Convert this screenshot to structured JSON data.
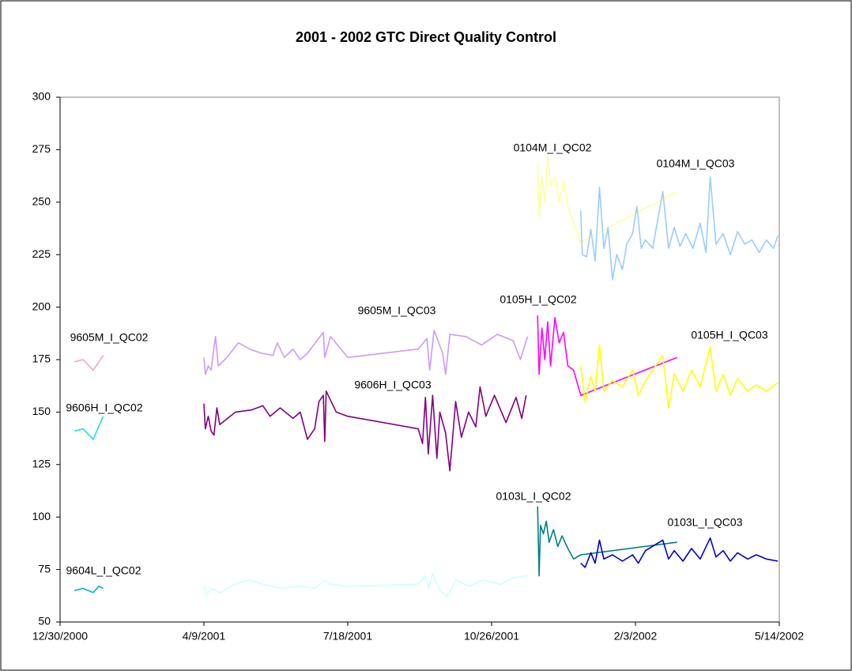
{
  "chart_data": {
    "type": "line",
    "title": "2001 - 2002 GTC Direct Quality Control",
    "xlim": [
      "12/30/2000",
      "5/14/2002"
    ],
    "xticks": [
      "12/30/2000",
      "4/9/2001",
      "7/18/2001",
      "10/26/2001",
      "2/3/2002",
      "5/14/2002"
    ],
    "ylim": [
      50,
      300
    ],
    "yticks": [
      50,
      75,
      100,
      125,
      150,
      175,
      200,
      225,
      250,
      275,
      300
    ],
    "grid": false,
    "series": [
      {
        "name": "9605M_I_QC02",
        "color": "#ff99cc",
        "x": [
          "1/9/2001",
          "1/15/2001",
          "1/22/2001",
          "1/29/2001"
        ],
        "values": [
          174,
          175,
          170,
          177
        ]
      },
      {
        "name": "9606H_I_QC02",
        "color": "#22dddd",
        "x": [
          "1/9/2001",
          "1/15/2001",
          "1/22/2001",
          "1/29/2001"
        ],
        "values": [
          141,
          142,
          137,
          148
        ]
      },
      {
        "name": "9604L_I_QC02",
        "color": "#00b0d8",
        "x": [
          "1/9/2001",
          "1/15/2001",
          "1/22/2001",
          "1/26/2001",
          "1/29/2001"
        ],
        "values": [
          65,
          66,
          64,
          67,
          66
        ]
      },
      {
        "name": "9605M_I_QC03",
        "color": "#cc99ff",
        "x": [
          "4/9/2001",
          "4/10/2001",
          "4/12/2001",
          "4/14/2001",
          "4/17/2001",
          "4/19/2001",
          "4/25/2001",
          "5/3/2001",
          "5/11/2001",
          "5/19/2001",
          "5/27/2001",
          "5/30/2001",
          "6/4/2001",
          "6/10/2001",
          "6/15/2001",
          "6/20/2001",
          "7/1/2001",
          "7/2/2001",
          "7/6/2001",
          "7/18/2001",
          "9/5/2001",
          "9/11/2001",
          "9/13/2001",
          "9/16/2001",
          "9/22/2001",
          "9/24/2001",
          "9/27/2001",
          "10/8/2001",
          "10/19/2001",
          "10/30/2001",
          "11/10/2001",
          "11/15/2001",
          "11/20/2001"
        ],
        "values": [
          176,
          168,
          172,
          170,
          186,
          172,
          176,
          183,
          180,
          178,
          177,
          183,
          176,
          180,
          175,
          178,
          188,
          176,
          186,
          176,
          180,
          185,
          170,
          189,
          178,
          168,
          187,
          186,
          182,
          187,
          184,
          175,
          186
        ]
      },
      {
        "name": "9606H_I_QC03",
        "color": "#800080",
        "x": [
          "4/9/2001",
          "4/10/2001",
          "4/12/2001",
          "4/14/2001",
          "4/16/2001",
          "4/18/2001",
          "4/20/2001",
          "5/1/2001",
          "5/12/2001",
          "5/20/2001",
          "5/25/2001",
          "6/1/2001",
          "6/10/2001",
          "6/15/2001",
          "6/20/2001",
          "6/25/2001",
          "6/28/2001",
          "7/1/2001",
          "7/2/2001",
          "7/3/2001",
          "7/10/2001",
          "7/18/2001",
          "9/5/2001",
          "9/8/2001",
          "9/10/2001",
          "9/12/2001",
          "9/15/2001",
          "9/18/2001",
          "9/20/2001",
          "9/24/2001",
          "9/27/2001",
          "10/1/2001",
          "10/5/2001",
          "10/10/2001",
          "10/15/2001",
          "10/18/2001",
          "10/22/2001",
          "10/28/2001",
          "11/5/2001",
          "11/12/2001",
          "11/16/2001",
          "11/19/2001"
        ],
        "values": [
          154,
          142,
          148,
          141,
          139,
          152,
          144,
          150,
          151,
          153,
          148,
          152,
          147,
          150,
          137,
          142,
          155,
          158,
          136,
          160,
          150,
          148,
          142,
          135,
          157,
          130,
          158,
          128,
          150,
          140,
          122,
          155,
          138,
          150,
          143,
          162,
          148,
          158,
          145,
          157,
          147,
          158
        ]
      },
      {
        "color": "#ccffff",
        "x": [
          "4/9/2001",
          "4/11/2001",
          "4/14/2001",
          "4/20/2001",
          "5/1/2001",
          "5/10/2001",
          "5/20/2001",
          "6/1/2001",
          "6/15/2001",
          "6/25/2001",
          "7/2/2001",
          "7/5/2001",
          "7/18/2001",
          "9/5/2001",
          "9/10/2001",
          "9/12/2001",
          "9/15/2001",
          "9/20/2001",
          "9/25/2001",
          "10/1/2001",
          "10/10/2001",
          "10/20/2001",
          "11/1/2001",
          "11/10/2001",
          "11/20/2001"
        ],
        "values": [
          67,
          63,
          66,
          64,
          68,
          70,
          68,
          66,
          67,
          66,
          70,
          68,
          67,
          68,
          72,
          66,
          73,
          65,
          62,
          70,
          67,
          70,
          68,
          71,
          72
        ]
      },
      {
        "name": "0104M_I_QC02",
        "color": "#ffff99",
        "x": [
          "11/27/2001",
          "11/28/2001",
          "11/30/2001",
          "12/2/2001",
          "12/4/2001",
          "12/6/2001",
          "12/9/2001",
          "12/12/2001",
          "12/15/2001",
          "12/18/2001",
          "12/22/2001",
          "12/27/2001",
          "3/4/2002"
        ],
        "values": [
          269,
          243,
          262,
          250,
          272,
          258,
          262,
          250,
          260,
          248,
          240,
          231,
          255
        ]
      },
      {
        "name": "0104M_I_QC03",
        "color": "#99ccff",
        "x": [
          "12/27/2001",
          "12/28/2001",
          "12/31/2001",
          "1/3/2002",
          "1/6/2002",
          "1/9/2002",
          "1/12/2002",
          "1/15/2002",
          "1/18/2002",
          "1/21/2002",
          "1/25/2002",
          "1/28/2002",
          "2/1/2002",
          "2/4/2002",
          "2/7/2002",
          "2/10/2002",
          "2/15/2002",
          "2/22/2002",
          "2/26/2002",
          "3/2/2002",
          "3/6/2002",
          "3/10/2002",
          "3/15/2002",
          "3/20/2002",
          "3/24/2002",
          "3/27/2002",
          "3/31/2002",
          "4/5/2002",
          "4/10/2002",
          "4/15/2002",
          "4/20/2002",
          "4/25/2002",
          "4/30/2002",
          "5/5/2002",
          "5/10/2002",
          "5/13/2002"
        ],
        "values": [
          246,
          225,
          224,
          237,
          222,
          257,
          228,
          238,
          213,
          225,
          218,
          230,
          235,
          248,
          228,
          232,
          228,
          255,
          228,
          238,
          229,
          235,
          228,
          240,
          226,
          262,
          230,
          235,
          225,
          236,
          230,
          232,
          226,
          232,
          228,
          234
        ]
      },
      {
        "name": "0105H_I_QC02",
        "color": "#ff00ff",
        "x": [
          "11/27/2001",
          "11/28/2001",
          "11/30/2001",
          "12/2/2001",
          "12/4/2001",
          "12/6/2001",
          "12/9/2001",
          "12/12/2001",
          "12/15/2001",
          "12/18/2001",
          "12/22/2001",
          "12/27/2001",
          "3/4/2002"
        ],
        "values": [
          196,
          168,
          190,
          175,
          193,
          172,
          195,
          183,
          188,
          172,
          170,
          158,
          176
        ]
      },
      {
        "name": "0105H_I_QC03",
        "color": "#ffff00",
        "x": [
          "12/27/2001",
          "12/30/2001",
          "1/3/2002",
          "1/6/2002",
          "1/9/2002",
          "1/12/2002",
          "1/18/2002",
          "1/25/2002",
          "2/1/2002",
          "2/5/2002",
          "2/10/2002",
          "2/22/2002",
          "2/26/2002",
          "3/2/2002",
          "3/8/2002",
          "3/14/2002",
          "3/20/2002",
          "3/27/2002",
          "3/31/2002",
          "4/5/2002",
          "4/10/2002",
          "4/15/2002",
          "4/22/2002",
          "4/28/2002",
          "5/5/2002",
          "5/13/2002"
        ],
        "values": [
          172,
          155,
          167,
          160,
          182,
          160,
          165,
          162,
          170,
          158,
          165,
          177,
          152,
          168,
          160,
          170,
          162,
          181,
          160,
          168,
          158,
          166,
          160,
          163,
          160,
          164
        ]
      },
      {
        "name": "0103L_I_QC02",
        "color": "#008080",
        "x": [
          "11/27/2001",
          "11/28/2001",
          "11/29/2001",
          "12/1/2001",
          "12/3/2001",
          "12/5/2001",
          "12/8/2001",
          "12/11/2001",
          "12/14/2001",
          "12/18/2001",
          "12/22/2001",
          "12/27/2001",
          "3/4/2002"
        ],
        "values": [
          105,
          72,
          96,
          92,
          98,
          88,
          94,
          86,
          91,
          85,
          80,
          82,
          88
        ]
      },
      {
        "name": "0103L_I_QC03",
        "color": "#0000cc",
        "x": [
          "12/27/2001",
          "12/30/2001",
          "1/3/2002",
          "1/6/2002",
          "1/9/2002",
          "1/12/2002",
          "1/18/2002",
          "1/25/2002",
          "2/1/2002",
          "2/5/2002",
          "2/10/2002",
          "2/22/2002",
          "2/26/2002",
          "3/2/2002",
          "3/8/2002",
          "3/14/2002",
          "3/20/2002",
          "3/27/2002",
          "3/31/2002",
          "4/5/2002",
          "4/10/2002",
          "4/15/2002",
          "4/22/2002",
          "4/28/2002",
          "5/5/2002",
          "5/13/2002"
        ],
        "values": [
          78,
          76,
          83,
          78,
          89,
          80,
          82,
          79,
          82,
          78,
          84,
          89,
          80,
          84,
          79,
          85,
          80,
          90,
          81,
          84,
          79,
          83,
          80,
          82,
          80,
          79
        ]
      }
    ]
  }
}
